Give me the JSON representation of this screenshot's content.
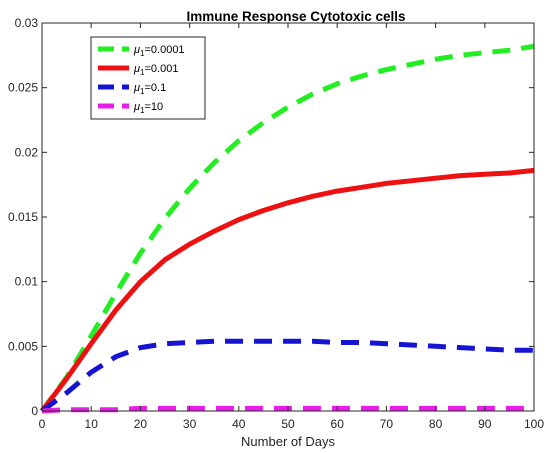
{
  "chart_data": {
    "type": "line",
    "title": "Immune Response Cytotoxic cells",
    "xlabel": "Number of Days",
    "ylabel": "",
    "xlim": [
      0,
      100
    ],
    "ylim": [
      0,
      0.03
    ],
    "xticks": [
      "0",
      "10",
      "20",
      "30",
      "40",
      "50",
      "60",
      "70",
      "80",
      "90",
      "100"
    ],
    "yticks": [
      "0",
      "0.005",
      "0.01",
      "0.015",
      "0.02",
      "0.025",
      "0.03"
    ],
    "grid": false,
    "legend_position": "top-left",
    "x": [
      0,
      5,
      10,
      15,
      20,
      25,
      30,
      35,
      40,
      45,
      50,
      55,
      60,
      65,
      70,
      75,
      80,
      85,
      90,
      95,
      100
    ],
    "series": [
      {
        "name": "μ1=0.0001",
        "legend_base": "μ",
        "legend_sub": "1",
        "legend_value": "=0.0001",
        "color": "#22ee22",
        "style": "dashed",
        "values": [
          0,
          0.0026,
          0.0058,
          0.0091,
          0.0122,
          0.0149,
          0.0172,
          0.0192,
          0.0209,
          0.0223,
          0.0235,
          0.0245,
          0.0253,
          0.0259,
          0.0264,
          0.0268,
          0.0272,
          0.0275,
          0.0277,
          0.0279,
          0.0282
        ]
      },
      {
        "name": "μ1=0.001",
        "legend_base": "μ",
        "legend_sub": "1",
        "legend_value": "=0.001",
        "color": "#ee1111",
        "style": "solid",
        "values": [
          0,
          0.0025,
          0.0052,
          0.0078,
          0.01,
          0.0117,
          0.0129,
          0.0139,
          0.0148,
          0.0155,
          0.0161,
          0.0166,
          0.017,
          0.0173,
          0.0176,
          0.0178,
          0.018,
          0.0182,
          0.0183,
          0.0184,
          0.0186
        ]
      },
      {
        "name": "μ1=0.1",
        "legend_base": "μ",
        "legend_sub": "1",
        "legend_value": "=0.1",
        "color": "#1414d2",
        "style": "dashed",
        "values": [
          0,
          0.0014,
          0.003,
          0.0042,
          0.0049,
          0.0052,
          0.0053,
          0.0054,
          0.0054,
          0.0054,
          0.0054,
          0.0054,
          0.0053,
          0.0053,
          0.0052,
          0.0051,
          0.005,
          0.0049,
          0.0048,
          0.0047,
          0.0047
        ]
      },
      {
        "name": "μ1=10",
        "legend_base": "μ",
        "legend_sub": "1",
        "legend_value": "=10",
        "color": "#e81ee8",
        "style": "dashed",
        "values": [
          0,
          0.0001,
          0.0001,
          0.0001,
          0.0002,
          0.0002,
          0.0002,
          0.0002,
          0.0002,
          0.0002,
          0.0002,
          0.0002,
          0.0002,
          0.0002,
          0.0002,
          0.0002,
          0.0002,
          0.0002,
          0.0002,
          0.0002,
          0.0002
        ]
      }
    ]
  }
}
